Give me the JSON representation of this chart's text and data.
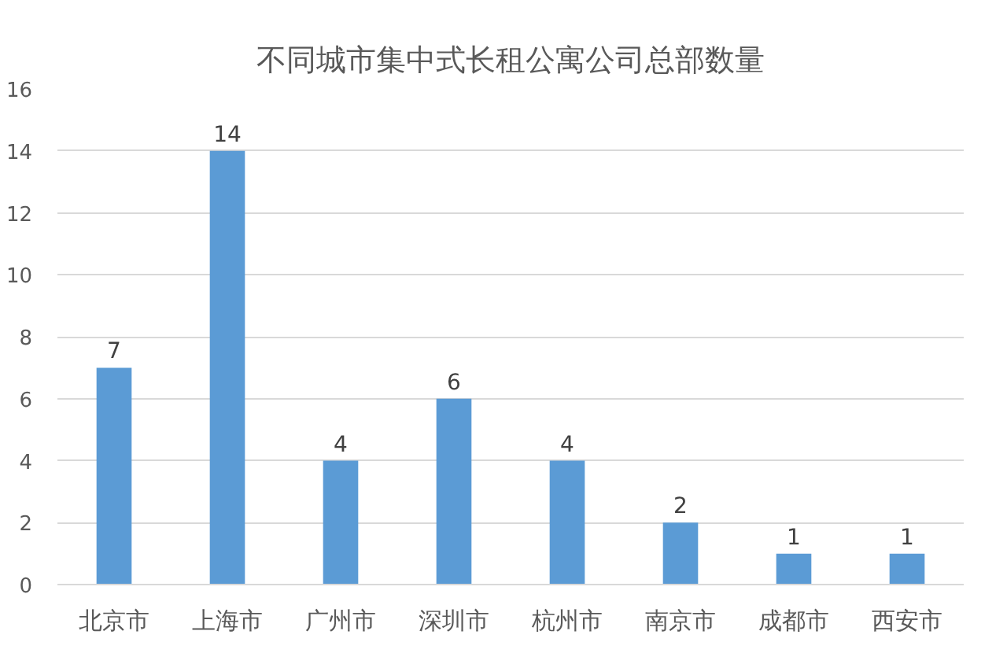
{
  "chart_data": {
    "type": "bar",
    "title": "不同城市集中式长租公寓公司总部数量",
    "categories": [
      "北京市",
      "上海市",
      "广州市",
      "深圳市",
      "杭州市",
      "南京市",
      "成都市",
      "西安市"
    ],
    "values": [
      7,
      14,
      4,
      6,
      4,
      2,
      1,
      1
    ],
    "color": "#5b9bd5",
    "ylim": [
      0,
      16
    ],
    "yticks": [
      0,
      2,
      4,
      6,
      8,
      10,
      12,
      14,
      16
    ],
    "grid": "y",
    "data_labels": true
  }
}
